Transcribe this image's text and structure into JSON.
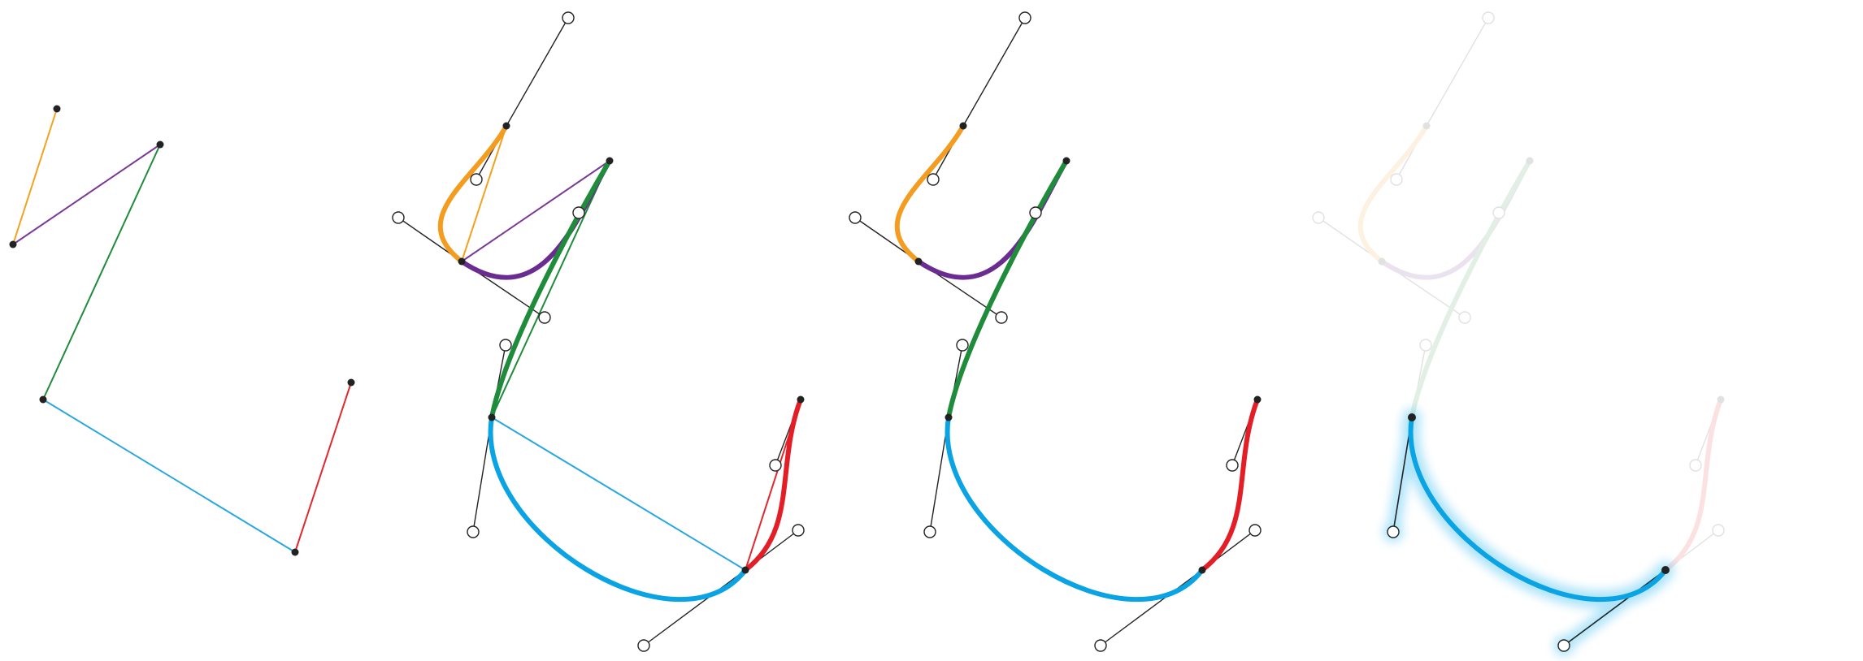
{
  "figure": {
    "segment_colors": {
      "orange": "#f39c1f",
      "purple": "#6a2c91",
      "green": "#1e8c3a",
      "blue": "#0aa3e4",
      "red": "#e31e26",
      "handle": "#222222"
    },
    "panels": [
      {
        "id": "control-polygon",
        "description_visible": false
      },
      {
        "id": "curve-with-polygon"
      },
      {
        "id": "curve-with-handles"
      },
      {
        "id": "highlighted-segment"
      }
    ]
  }
}
